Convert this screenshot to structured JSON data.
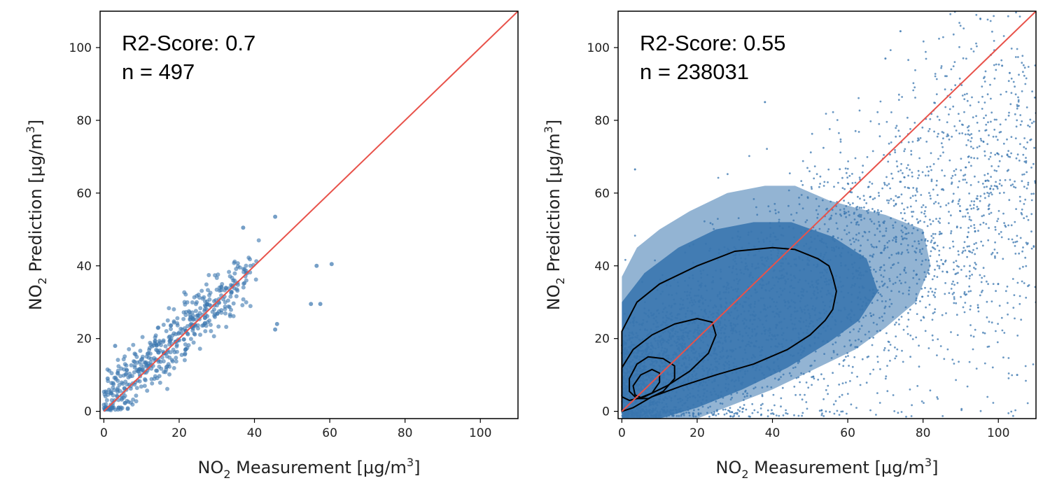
{
  "colors": {
    "points": "#3a76af",
    "identity_line": "#e8524a",
    "contour": "#000000",
    "frame": "#000000"
  },
  "chart_data": [
    {
      "type": "scatter",
      "xlabel": "NO2 Measurement [μg/m3]",
      "ylabel": "NO2 Prediction [μg/m3]",
      "xlim": [
        -1,
        110
      ],
      "ylim": [
        -2,
        110
      ],
      "xticks": [
        "0",
        "20",
        "40",
        "60",
        "80",
        "100"
      ],
      "yticks": [
        "0",
        "20",
        "40",
        "60",
        "80",
        "100"
      ],
      "annotations": [
        "R2-Score: 0.7",
        "n = 497"
      ],
      "r2": 0.7,
      "n": 497,
      "identity_line": [
        [
          0,
          0
        ],
        [
          110,
          110
        ]
      ],
      "extremes": [
        {
          "x": 45.5,
          "y": 53.5
        },
        {
          "x": 37.0,
          "y": 50.5
        },
        {
          "x": 60.5,
          "y": 40.5
        },
        {
          "x": 56.5,
          "y": 40.0
        },
        {
          "x": 55.0,
          "y": 29.5
        },
        {
          "x": 57.5,
          "y": 29.5
        },
        {
          "x": 46.0,
          "y": 24.0
        },
        {
          "x": 45.5,
          "y": 22.5
        },
        {
          "x": 3.0,
          "y": 18.0
        },
        {
          "x": 1.0,
          "y": 9.0
        },
        {
          "x": 2.0,
          "y": 5.0
        }
      ],
      "distribution": "points cluster along the identity line, most between 0 and 40 μg/m3 measurement"
    },
    {
      "type": "scatter",
      "xlabel": "NO2 Measurement [μg/m3]",
      "ylabel": "NO2 Prediction [μg/m3]",
      "xlim": [
        -1,
        110
      ],
      "ylim": [
        -2,
        110
      ],
      "xticks": [
        "0",
        "20",
        "40",
        "60",
        "80",
        "100"
      ],
      "yticks": [
        "0",
        "20",
        "40",
        "60",
        "80",
        "100"
      ],
      "annotations": [
        "R2-Score: 0.55",
        "n = 238031"
      ],
      "r2": 0.55,
      "n": 238031,
      "identity_line": [
        [
          0,
          0
        ],
        [
          110,
          110
        ]
      ],
      "density_contours": [
        [
          [
            0,
            22
          ],
          [
            4,
            30
          ],
          [
            10,
            35
          ],
          [
            20,
            40
          ],
          [
            30,
            44
          ],
          [
            40,
            45
          ],
          [
            46,
            44.5
          ],
          [
            52,
            42
          ],
          [
            55,
            40
          ],
          [
            56,
            37
          ],
          [
            57,
            33
          ],
          [
            56,
            28
          ],
          [
            54,
            25
          ],
          [
            50,
            21
          ],
          [
            44,
            17
          ],
          [
            35,
            13
          ],
          [
            25,
            10
          ],
          [
            16,
            7
          ],
          [
            8,
            4
          ],
          [
            3,
            1
          ],
          [
            0,
            0
          ]
        ],
        [
          [
            0,
            12
          ],
          [
            3,
            17
          ],
          [
            8,
            21
          ],
          [
            14,
            24
          ],
          [
            20,
            25.5
          ],
          [
            24,
            24.5
          ],
          [
            25,
            21
          ],
          [
            23,
            16
          ],
          [
            18,
            11
          ],
          [
            12,
            7
          ],
          [
            6,
            4
          ],
          [
            2,
            3
          ],
          [
            0,
            4
          ]
        ],
        [
          [
            2,
            9
          ],
          [
            4,
            13
          ],
          [
            7,
            15
          ],
          [
            11,
            14.5
          ],
          [
            14,
            12.5
          ],
          [
            14,
            9
          ],
          [
            11,
            5.5
          ],
          [
            7,
            3.5
          ],
          [
            4,
            3.5
          ],
          [
            2,
            5.5
          ]
        ],
        [
          [
            3,
            7
          ],
          [
            5,
            10
          ],
          [
            8,
            11.5
          ],
          [
            10,
            10.5
          ],
          [
            10,
            8
          ],
          [
            8,
            5
          ],
          [
            5,
            3.8
          ],
          [
            3.5,
            4.5
          ]
        ]
      ],
      "extremes": [
        {
          "x": 74.0,
          "y": 104.5
        },
        {
          "x": 70.0,
          "y": 97.0
        },
        {
          "x": 98.0,
          "y": 98.0
        },
        {
          "x": 101.0,
          "y": 95.0
        },
        {
          "x": 103.0,
          "y": 93.0
        },
        {
          "x": 3.5,
          "y": 66.5
        },
        {
          "x": 38.0,
          "y": 85.0
        },
        {
          "x": 110.0,
          "y": 82.0
        },
        {
          "x": 110.0,
          "y": 30.0
        },
        {
          "x": 105.0,
          "y": 10.0
        }
      ],
      "distribution": "dense cloud concentrated at low measurement values, spreading widely up to ~110 μg/m3"
    }
  ]
}
